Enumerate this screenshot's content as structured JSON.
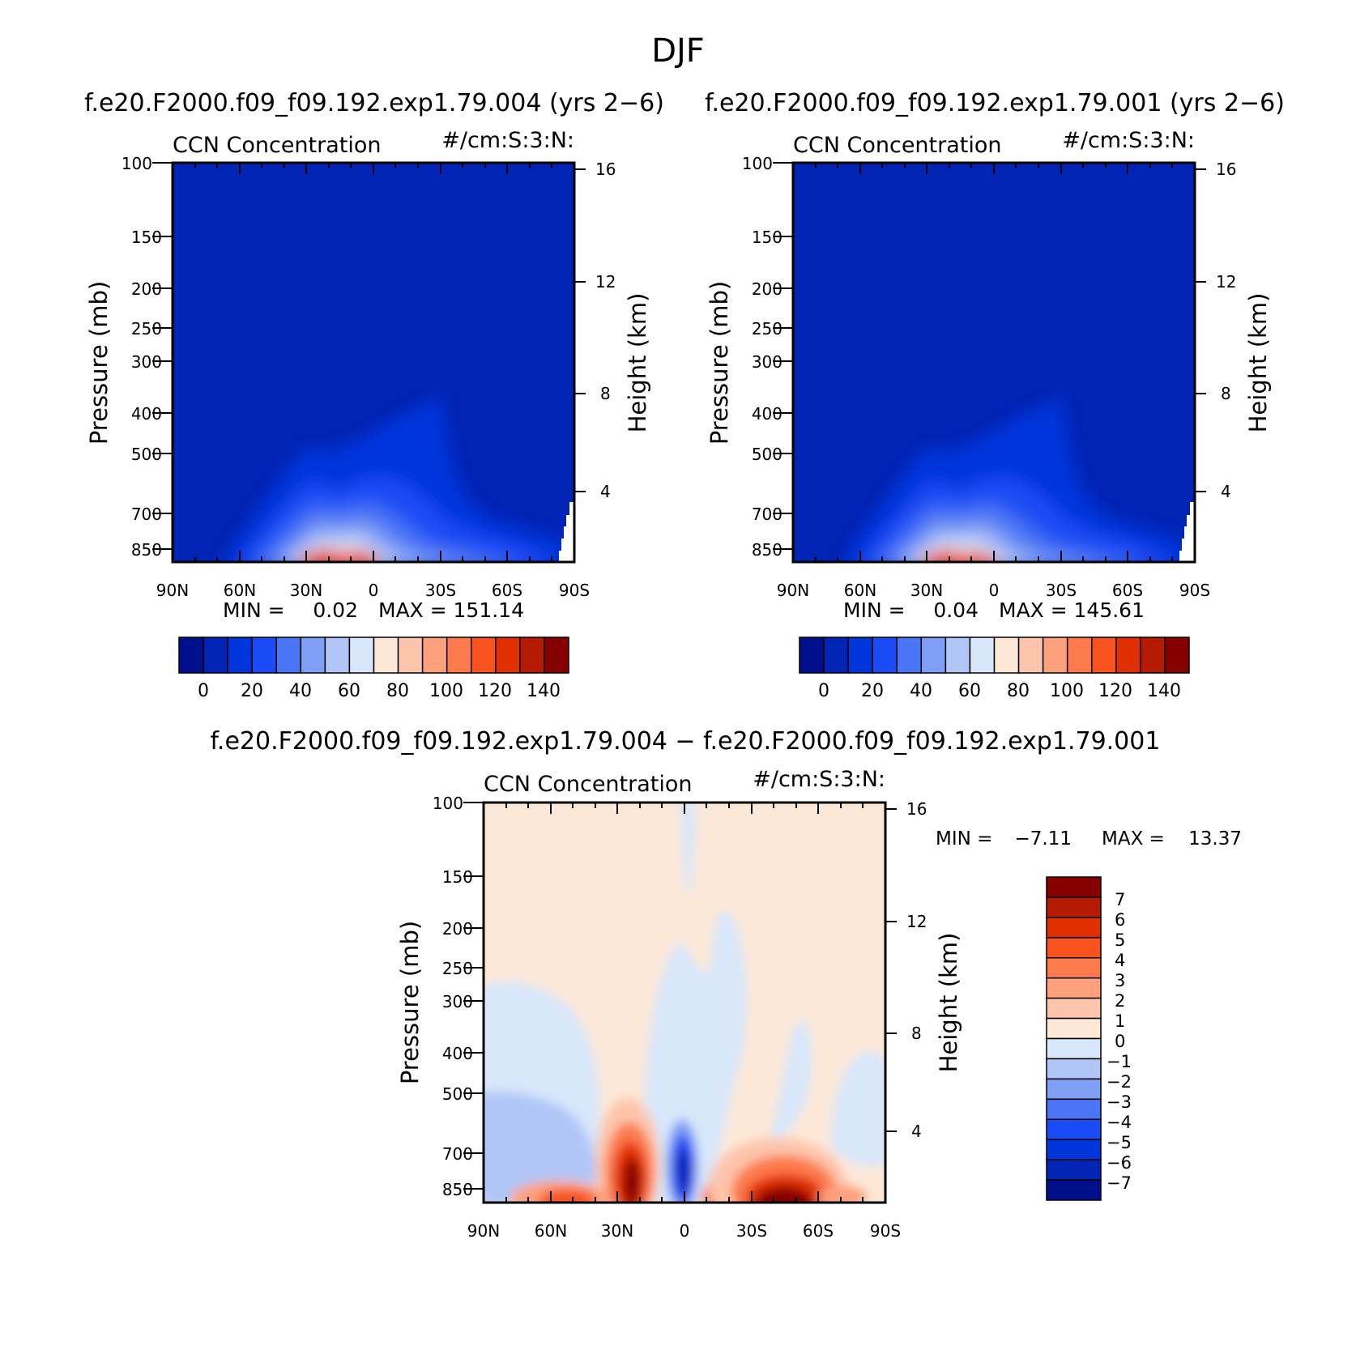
{
  "figure": {
    "title": "DJF",
    "diff_title": "f.e20.F2000.f09_f09.192.exp1.79.004 − f.e20.F2000.f09_f09.192.exp1.79.001"
  },
  "colors": {
    "abs_palette": [
      "#000f8c",
      "#0024b4",
      "#0035dc",
      "#1a4cf5",
      "#4a75f5",
      "#7f9ef5",
      "#b1c6f7",
      "#d8e7fa",
      "#fde8d8",
      "#fdc5ab",
      "#fda07c",
      "#fc7a4c",
      "#f8521f",
      "#e13000",
      "#b41b00",
      "#870000"
    ],
    "diff_palette": [
      "#000f8c",
      "#0024b4",
      "#0035dc",
      "#1a4cf5",
      "#4a75f5",
      "#7f9ef5",
      "#b1c6f7",
      "#d8e7fa",
      "#fde8d8",
      "#fdc5ab",
      "#fda07c",
      "#fc7a4c",
      "#f8521f",
      "#e13000",
      "#b41b00",
      "#870000"
    ]
  },
  "chart_data": [
    {
      "type": "heatmap",
      "panel_title": "f.e20.F2000.f09_f09.192.exp1.79.004 (yrs 2−6)",
      "left_label": "CCN Concentration",
      "right_label": "#/cm:S:3:N:",
      "ylabel": "Pressure (mb)",
      "ylabel_right": "Height (km)",
      "x_ticks": [
        "90N",
        "60N",
        "30N",
        "0",
        "30S",
        "60S",
        "90S"
      ],
      "y_ticks": [
        "100",
        "150",
        "200",
        "250",
        "300",
        "400",
        "500",
        "700",
        "850"
      ],
      "y_ticks_right": [
        "16",
        "12",
        "8",
        "4"
      ],
      "min_label": "MIN =",
      "min_value": "0.02",
      "max_label": "MAX =",
      "max_value": "151.14",
      "colorbar_labels": [
        "0",
        "20",
        "40",
        "60",
        "80",
        "100",
        "120",
        "140"
      ],
      "xlim": [
        90,
        -90
      ],
      "ylim": [
        1000,
        100
      ]
    },
    {
      "type": "heatmap",
      "panel_title": "f.e20.F2000.f09_f09.192.exp1.79.001 (yrs 2−6)",
      "left_label": "CCN Concentration",
      "right_label": "#/cm:S:3:N:",
      "ylabel": "Pressure (mb)",
      "ylabel_right": "Height (km)",
      "x_ticks": [
        "90N",
        "60N",
        "30N",
        "0",
        "30S",
        "60S",
        "90S"
      ],
      "y_ticks": [
        "100",
        "150",
        "200",
        "250",
        "300",
        "400",
        "500",
        "700",
        "850"
      ],
      "y_ticks_right": [
        "16",
        "12",
        "8",
        "4"
      ],
      "min_label": "MIN =",
      "min_value": "0.04",
      "max_label": "MAX =",
      "max_value": "145.61",
      "colorbar_labels": [
        "0",
        "20",
        "40",
        "60",
        "80",
        "100",
        "120",
        "140"
      ],
      "xlim": [
        90,
        -90
      ],
      "ylim": [
        1000,
        100
      ]
    },
    {
      "type": "heatmap",
      "left_label": "CCN Concentration",
      "right_label": "#/cm:S:3:N:",
      "ylabel": "Pressure (mb)",
      "ylabel_right": "Height (km)",
      "x_ticks": [
        "90N",
        "60N",
        "30N",
        "0",
        "30S",
        "60S",
        "90S"
      ],
      "y_ticks": [
        "100",
        "150",
        "200",
        "250",
        "300",
        "400",
        "500",
        "700",
        "850"
      ],
      "y_ticks_right": [
        "16",
        "12",
        "8",
        "4"
      ],
      "min_label": "MIN =",
      "min_value": "−7.11",
      "max_label": "MAX =",
      "max_value": "13.37",
      "colorbar_labels": [
        "7",
        "6",
        "5",
        "4",
        "3",
        "2",
        "1",
        "0",
        "−1",
        "−2",
        "−3",
        "−4",
        "−5",
        "−6",
        "−7"
      ],
      "xlim": [
        90,
        -90
      ],
      "ylim": [
        1000,
        100
      ]
    }
  ]
}
